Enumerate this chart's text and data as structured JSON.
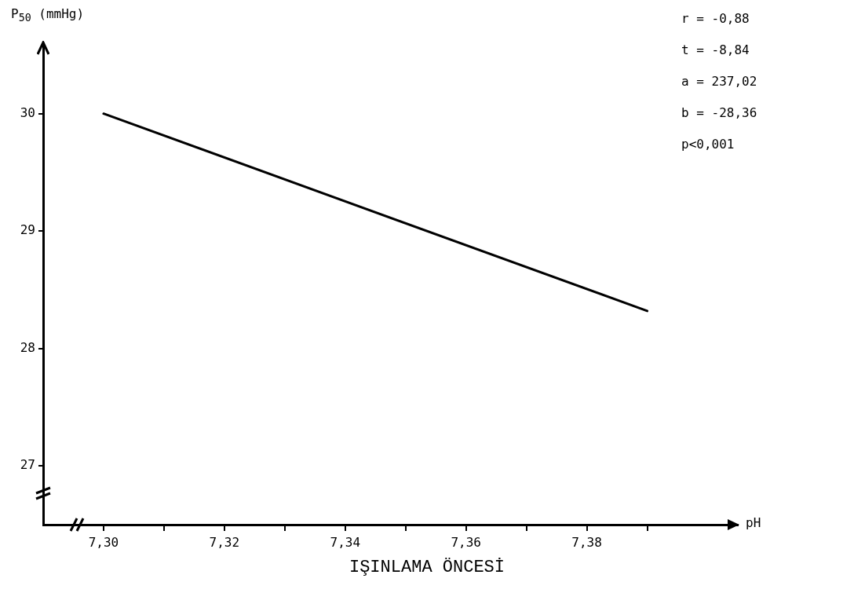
{
  "chart_data": {
    "type": "line",
    "title": "IŞINLAMA ÖNCESİ",
    "xlabel": "pH",
    "ylabel": "P$_{50}$ (mmHg)",
    "x": [
      7.3,
      7.39
    ],
    "series": [
      {
        "color": "#000000",
        "values": [
          30.0,
          28.32
        ]
      }
    ],
    "xlim": [
      7.29,
      7.405
    ],
    "xticks": [
      {
        "value": 7.3,
        "label": "7,30"
      },
      {
        "value": 7.31,
        "label": null
      },
      {
        "value": 7.32,
        "label": "7,32"
      },
      {
        "value": 7.33,
        "label": null
      },
      {
        "value": 7.34,
        "label": "7,34"
      },
      {
        "value": 7.35,
        "label": null
      },
      {
        "value": 7.36,
        "label": "7,36"
      },
      {
        "value": 7.37,
        "label": null
      },
      {
        "value": 7.38,
        "label": "7,38"
      },
      {
        "value": 7.39,
        "label": null
      }
    ],
    "ylim": [
      26.5,
      30.6
    ],
    "yticks": [
      27,
      28,
      29,
      30
    ],
    "annotations": [
      "r = -0,88",
      "t = -8,84",
      "a = 237,02",
      "b = -28,36",
      "p<0,001"
    ],
    "grid": false,
    "legend": false,
    "marker": "none",
    "line_style": "solid"
  }
}
